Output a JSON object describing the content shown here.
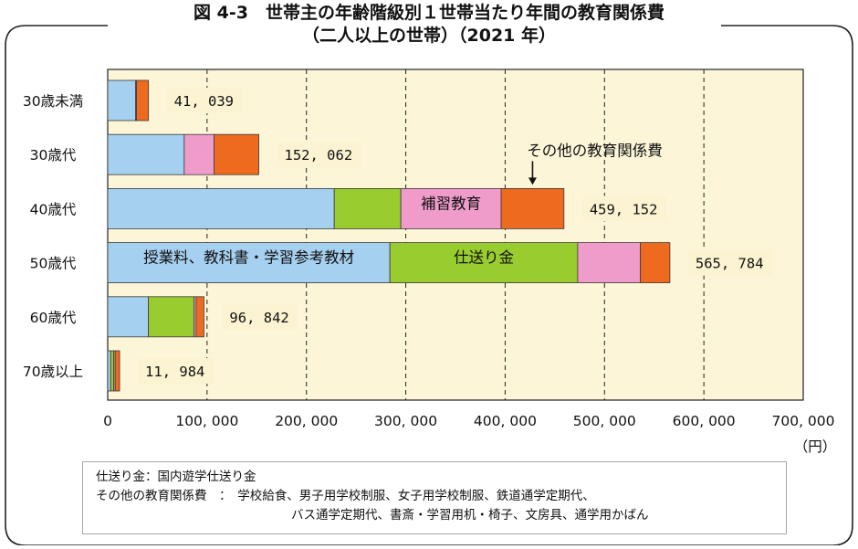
{
  "title": "図 4-3　世帯主の年齢階級別１世帯当たり年間の教育関係費",
  "subtitle": "（二人以上の世帯）（2021 年）",
  "unit_label": "（円）",
  "colors": {
    "tuition": "#a6d0ef",
    "remittance": "#99cc2e",
    "tutoring": "#ef9ccb",
    "other": "#ed6a1f",
    "plot_bg": "#fcf5d8",
    "label_bg": "#fbf3d1"
  },
  "chart_data": {
    "type": "bar",
    "orientation": "horizontal",
    "stacked": true,
    "categories": [
      "30歳未満",
      "30歳代",
      "40歳代",
      "50歳代",
      "60歳代",
      "70歳以上"
    ],
    "series": [
      {
        "key": "tuition",
        "name": "授業料、教科書・学習参考教材",
        "values": [
          28000,
          77000,
          228000,
          284000,
          41000,
          3000
        ]
      },
      {
        "key": "remittance",
        "name": "仕送り金",
        "values": [
          0,
          0,
          67000,
          189000,
          46000,
          3000
        ]
      },
      {
        "key": "tutoring",
        "name": "補習教育",
        "values": [
          1000,
          30000,
          101000,
          63000,
          2000,
          1500
        ]
      },
      {
        "key": "other",
        "name": "その他の教育関係費",
        "values": [
          12039,
          45062,
          63152,
          29784,
          7842,
          4484
        ]
      }
    ],
    "totals": [
      41039,
      152062,
      459152,
      565784,
      96842,
      11984
    ],
    "total_labels": [
      "41, 039",
      "152, 062",
      "459, 152",
      "565, 784",
      "96, 842",
      "11, 984"
    ],
    "xlim": [
      0,
      700000
    ],
    "xticks": [
      0,
      100000,
      200000,
      300000,
      400000,
      500000,
      600000,
      700000
    ],
    "xtick_labels": [
      "0",
      "100, 000",
      "200, 000",
      "300, 000",
      "400, 000",
      "500, 000",
      "600, 000",
      "700, 000"
    ],
    "grid": "vertical-dashed",
    "annotations": [
      {
        "text": "その他の教育関係費",
        "category_index": 2,
        "series_key": "other",
        "arrow": true
      },
      {
        "text": "補習教育",
        "category_index": 2,
        "series_key": "tutoring",
        "arrow": false
      },
      {
        "text": "授業料、教科書・学習参考教材",
        "category_index": 3,
        "series_key": "tuition",
        "arrow": false
      },
      {
        "text": "仕送り金",
        "category_index": 3,
        "series_key": "remittance",
        "arrow": false
      }
    ]
  },
  "notes": {
    "line1": "仕送り金：国内遊学仕送り金",
    "line2": "その他の教育関係費　：　学校給食、男子用学校制服、女子用学校制服、鉄道通学定期代、",
    "line3": "バス通学定期代、書斎・学習用机・椅子、文房具、通学用かばん"
  }
}
